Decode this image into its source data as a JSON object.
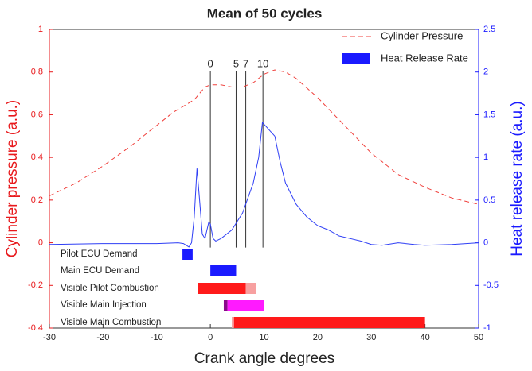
{
  "chart_data": {
    "type": "line",
    "title": "Mean of 50 cycles",
    "xlabel": "Crank angle degrees",
    "ylabel": "Cylinder pressure (a.u.)",
    "y2label": "Heat release rate (a.u.)",
    "xlim": [
      -30,
      50
    ],
    "xticks": [
      -30,
      -20,
      -10,
      0,
      10,
      20,
      30,
      40,
      50
    ],
    "ylim": [
      -0.4,
      1
    ],
    "yticks": [
      -0.4,
      -0.2,
      0,
      0.2,
      0.4,
      0.6,
      0.8,
      1
    ],
    "ycolor": "#e8191c",
    "y2lim": [
      -1,
      2.5
    ],
    "y2ticks": [
      -1,
      -0.5,
      0,
      0.5,
      1,
      1.5,
      2,
      2.5
    ],
    "y2color": "#1a1aff",
    "legend": "upper right",
    "series": [
      {
        "name": "Cylinder Pressure",
        "color": "#f0403c",
        "style": "dashed",
        "x": [
          -30,
          -25,
          -20,
          -15,
          -10,
          -7,
          -5,
          -3,
          -2,
          -1,
          0,
          2,
          4,
          6,
          8,
          10,
          12,
          14,
          16,
          20,
          25,
          30,
          35,
          40,
          45,
          50
        ],
        "values": [
          0.22,
          0.28,
          0.36,
          0.45,
          0.55,
          0.61,
          0.64,
          0.67,
          0.7,
          0.73,
          0.74,
          0.74,
          0.73,
          0.73,
          0.75,
          0.79,
          0.81,
          0.8,
          0.77,
          0.68,
          0.55,
          0.42,
          0.32,
          0.26,
          0.21,
          0.18
        ]
      },
      {
        "name": "Heat Release Rate",
        "color": "#2f3ff5",
        "style": "solid",
        "axis": "y2",
        "x": [
          -30,
          -20,
          -10,
          -6,
          -5,
          -4,
          -3.5,
          -3,
          -2.5,
          -2,
          -1.5,
          -1,
          -0.3,
          0,
          0.5,
          1,
          2,
          4,
          6,
          8,
          9,
          9.7,
          11,
          12,
          13,
          14,
          16,
          18,
          20,
          22,
          24,
          26,
          28,
          30,
          32,
          35,
          38,
          40,
          45,
          50
        ],
        "values": [
          -0.02,
          -0.01,
          -0.01,
          0,
          -0.01,
          -0.05,
          0,
          0.3,
          0.87,
          0.5,
          0.1,
          0.05,
          0.24,
          0.22,
          0.05,
          0.02,
          0.05,
          0.15,
          0.35,
          0.7,
          1.0,
          1.41,
          1.32,
          1.25,
          0.95,
          0.7,
          0.45,
          0.3,
          0.2,
          0.15,
          0.08,
          0.05,
          0.02,
          -0.02,
          -0.03,
          0,
          -0.02,
          -0.03,
          -0.02,
          0
        ]
      }
    ],
    "annotations": [
      {
        "value": 0,
        "label": "0"
      },
      {
        "value": 4.8,
        "label": "5"
      },
      {
        "value": 6.6,
        "label": "7"
      },
      {
        "value": 9.8,
        "label": "10"
      }
    ],
    "bars": [
      {
        "label": "Pilot ECU Demand",
        "segments": [
          {
            "start": -5.2,
            "end": -3.3,
            "color": "#1a1aff"
          }
        ]
      },
      {
        "label": "Main ECU Demand",
        "segments": [
          {
            "start": 0,
            "end": 4.8,
            "color": "#1a1aff"
          }
        ]
      },
      {
        "label": "Visible Pilot Combustion",
        "segments": [
          {
            "start": -2.3,
            "end": 6.6,
            "color": "#ff1a1a"
          },
          {
            "start": 6.6,
            "end": 8.5,
            "color": "#f7a0a0"
          }
        ]
      },
      {
        "label": "Visible Main Injection",
        "segments": [
          {
            "start": 2.5,
            "end": 3.2,
            "color": "#8a0a8a"
          },
          {
            "start": 3.2,
            "end": 10,
            "color": "#ff1aff"
          }
        ]
      },
      {
        "label": "Visible Main Combustion",
        "segments": [
          {
            "start": 4,
            "end": 4.4,
            "color": "#f7a0a0"
          },
          {
            "start": 4.4,
            "end": 40,
            "color": "#ff1a1a"
          }
        ]
      }
    ]
  }
}
